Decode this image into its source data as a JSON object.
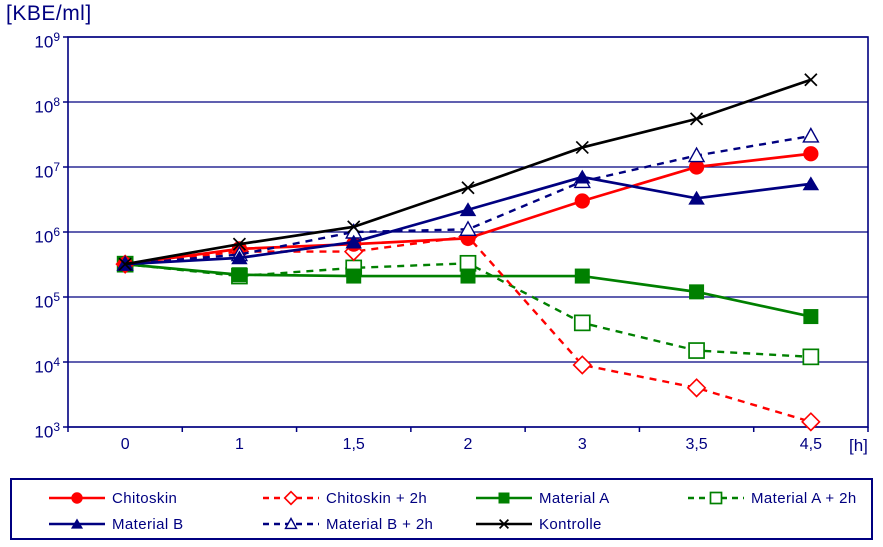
{
  "chart_data": {
    "type": "line",
    "title": "[KBE/ml]",
    "xlabel": "[h]",
    "y_scale": "log",
    "ylim_exponents": [
      3,
      9
    ],
    "y_ticks_exponents": [
      9,
      8,
      7,
      6,
      5,
      4,
      3
    ],
    "categories": [
      "0",
      "1",
      "1,5",
      "2",
      "3",
      "3,5",
      "4,5"
    ],
    "grid": "horizontal",
    "legend_position": "bottom",
    "axis_color": "#000080",
    "series": [
      {
        "name": "Chitoskin",
        "color": "#ff0000",
        "line": "solid",
        "marker": "circle-filled",
        "values": [
          320000,
          550000,
          650000,
          800000,
          3000000,
          10000000,
          16000000
        ]
      },
      {
        "name": "Chitoskin + 2h",
        "color": "#ff0000",
        "line": "dashed",
        "marker": "diamond-open",
        "values": [
          320000,
          500000,
          500000,
          850000,
          9000,
          4000,
          1200
        ]
      },
      {
        "name": "Material A",
        "color": "#008000",
        "line": "solid",
        "marker": "square-filled",
        "values": [
          320000,
          220000,
          210000,
          210000,
          210000,
          120000,
          50000
        ]
      },
      {
        "name": "Material A + 2h",
        "color": "#008000",
        "line": "dashed",
        "marker": "square-open",
        "values": [
          320000,
          210000,
          280000,
          330000,
          40000,
          15000,
          12000
        ]
      },
      {
        "name": "Material B",
        "color": "#000080",
        "line": "solid",
        "marker": "triangle-filled",
        "values": [
          320000,
          400000,
          700000,
          2200000,
          7000000,
          3300000,
          5500000
        ]
      },
      {
        "name": "Material B + 2h",
        "color": "#000080",
        "line": "dashed",
        "marker": "triangle-open",
        "values": [
          320000,
          450000,
          1000000,
          1100000,
          6000000,
          15000000,
          30000000
        ]
      },
      {
        "name": "Kontrolle",
        "color": "#000000",
        "line": "solid",
        "marker": "x",
        "values": [
          320000,
          650000,
          1200000,
          4800000,
          20000000,
          55000000,
          220000000
        ]
      }
    ],
    "legend_rows": [
      [
        0,
        1,
        2,
        3
      ],
      [
        4,
        5,
        6
      ]
    ]
  }
}
